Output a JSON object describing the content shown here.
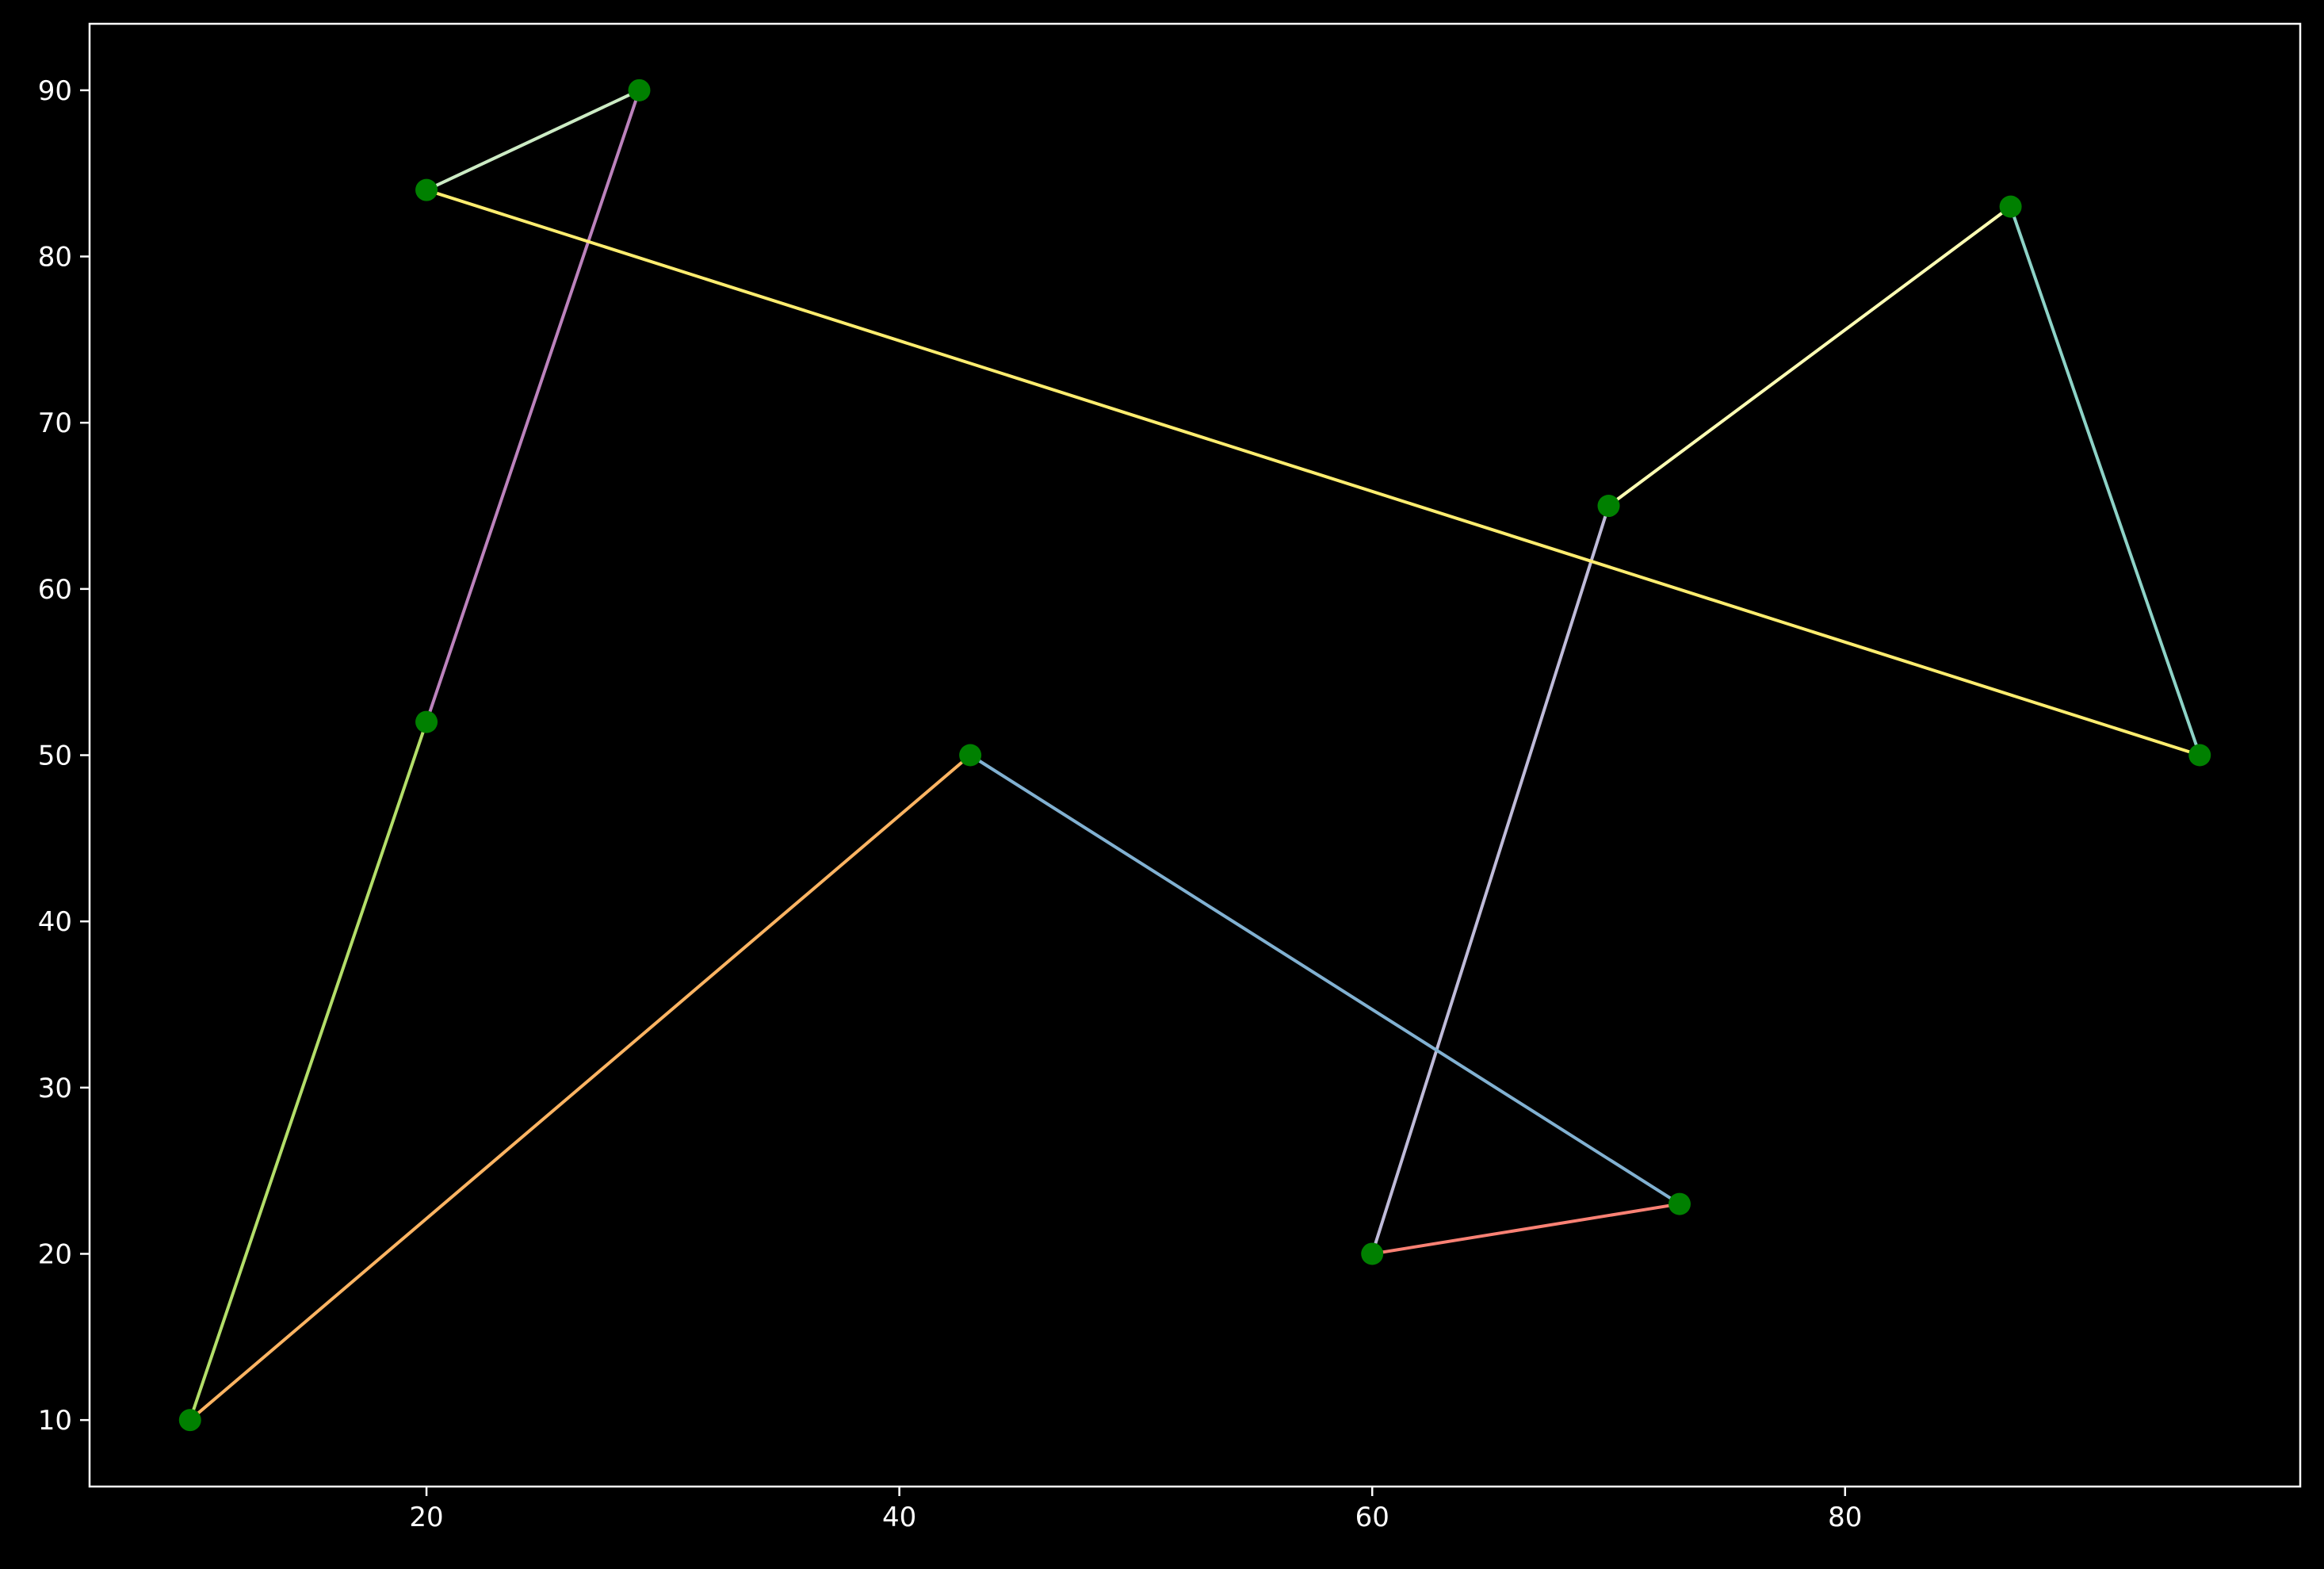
{
  "chart_data": {
    "type": "line",
    "title": "",
    "xlabel": "",
    "ylabel": "",
    "xlim": [
      5.75,
      99.25
    ],
    "ylim": [
      6.0,
      94.0
    ],
    "grid": false,
    "legend": "none",
    "x_ticks": [
      "20",
      "40",
      "60",
      "80"
    ],
    "x_tick_values": [
      20,
      40,
      60,
      80
    ],
    "y_ticks": [
      "10",
      "20",
      "30",
      "40",
      "50",
      "60",
      "70",
      "80",
      "90"
    ],
    "y_tick_values": [
      10,
      20,
      30,
      40,
      50,
      60,
      70,
      80,
      90
    ],
    "points": [
      {
        "x": 95,
        "y": 50
      },
      {
        "x": 87,
        "y": 83
      },
      {
        "x": 70,
        "y": 65
      },
      {
        "x": 60,
        "y": 20
      },
      {
        "x": 73,
        "y": 23
      },
      {
        "x": 43,
        "y": 50
      },
      {
        "x": 10,
        "y": 10
      },
      {
        "x": 20,
        "y": 52
      },
      {
        "x": 29,
        "y": 90
      },
      {
        "x": 20,
        "y": 84
      }
    ],
    "segments": [
      {
        "from": 0,
        "to": 1,
        "color": "#8dd3c7"
      },
      {
        "from": 1,
        "to": 2,
        "color": "#feffb3"
      },
      {
        "from": 2,
        "to": 3,
        "color": "#bfbbd9"
      },
      {
        "from": 3,
        "to": 4,
        "color": "#fa8174"
      },
      {
        "from": 4,
        "to": 5,
        "color": "#81b1d2"
      },
      {
        "from": 5,
        "to": 6,
        "color": "#fdb462"
      },
      {
        "from": 6,
        "to": 7,
        "color": "#b3de69"
      },
      {
        "from": 7,
        "to": 8,
        "color": "#bc82bd"
      },
      {
        "from": 8,
        "to": 9,
        "color": "#ccebc4"
      },
      {
        "from": 9,
        "to": 0,
        "color": "#ffed6f"
      }
    ],
    "marker_color": "#008000",
    "background": "#000000",
    "axis_color": "#ffffff"
  }
}
